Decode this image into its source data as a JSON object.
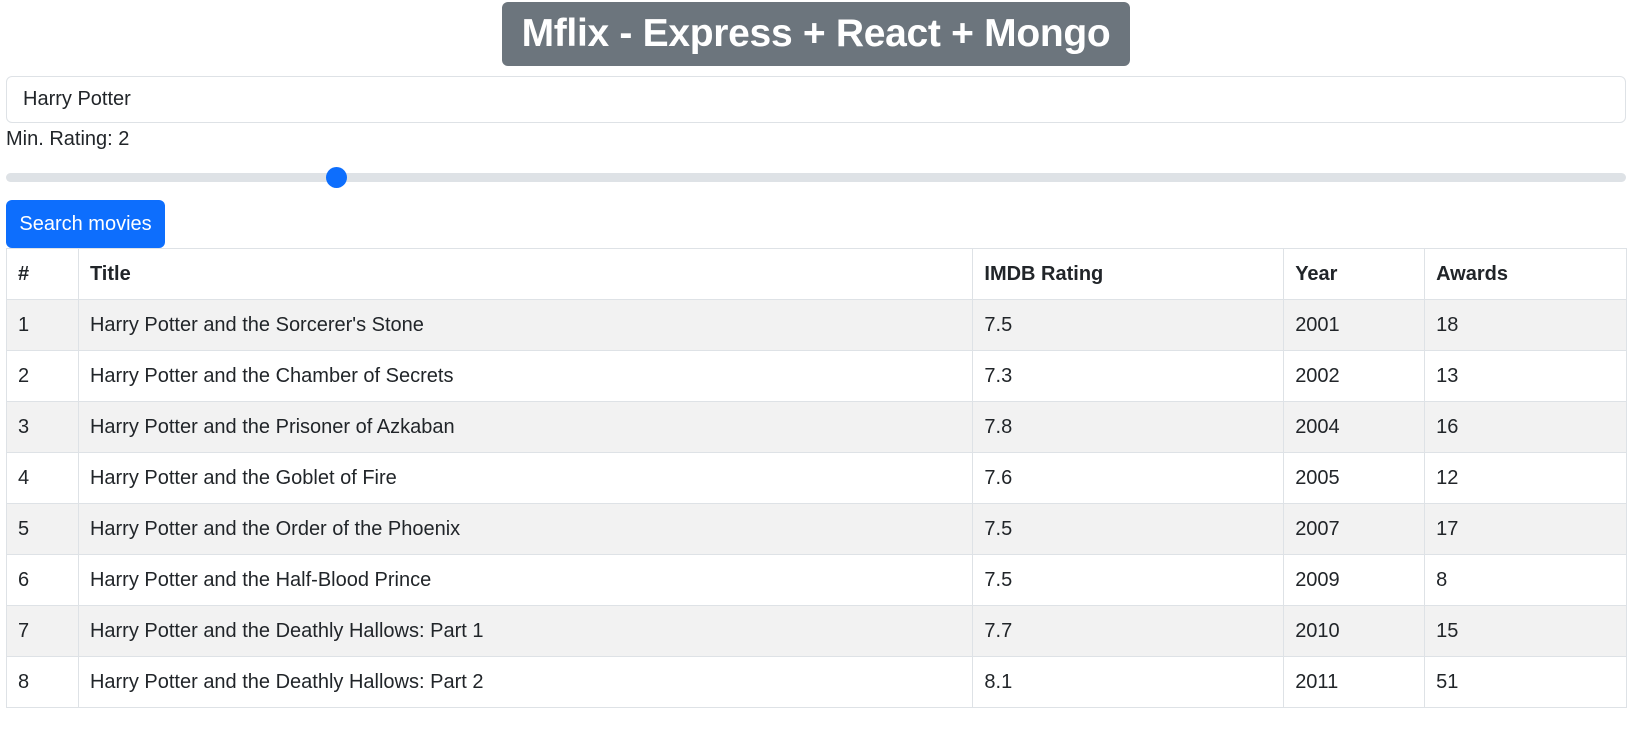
{
  "header": {
    "title": "Mflix - Express + React + Mongo"
  },
  "search": {
    "value": "Harry Potter"
  },
  "rating": {
    "label": "Min. Rating: ",
    "value": "2",
    "fraction": 0.2,
    "accent": "#0d6efd"
  },
  "button": {
    "label": "Search movies",
    "color": "#0d6efd"
  },
  "table": {
    "columns": [
      "#",
      "Title",
      "IMDB Rating",
      "Year",
      "Awards"
    ],
    "rows": [
      [
        "1",
        "Harry Potter and the Sorcerer's Stone",
        "7.5",
        "2001",
        "18"
      ],
      [
        "2",
        "Harry Potter and the Chamber of Secrets",
        "7.3",
        "2002",
        "13"
      ],
      [
        "3",
        "Harry Potter and the Prisoner of Azkaban",
        "7.8",
        "2004",
        "16"
      ],
      [
        "4",
        "Harry Potter and the Goblet of Fire",
        "7.6",
        "2005",
        "12"
      ],
      [
        "5",
        "Harry Potter and the Order of the Phoenix",
        "7.5",
        "2007",
        "17"
      ],
      [
        "6",
        "Harry Potter and the Half-Blood Prince",
        "7.5",
        "2009",
        "8"
      ],
      [
        "7",
        "Harry Potter and the Deathly Hallows: Part 1",
        "7.7",
        "2010",
        "15"
      ],
      [
        "8",
        "Harry Potter and the Deathly Hallows: Part 2",
        "8.1",
        "2011",
        "51"
      ]
    ]
  }
}
